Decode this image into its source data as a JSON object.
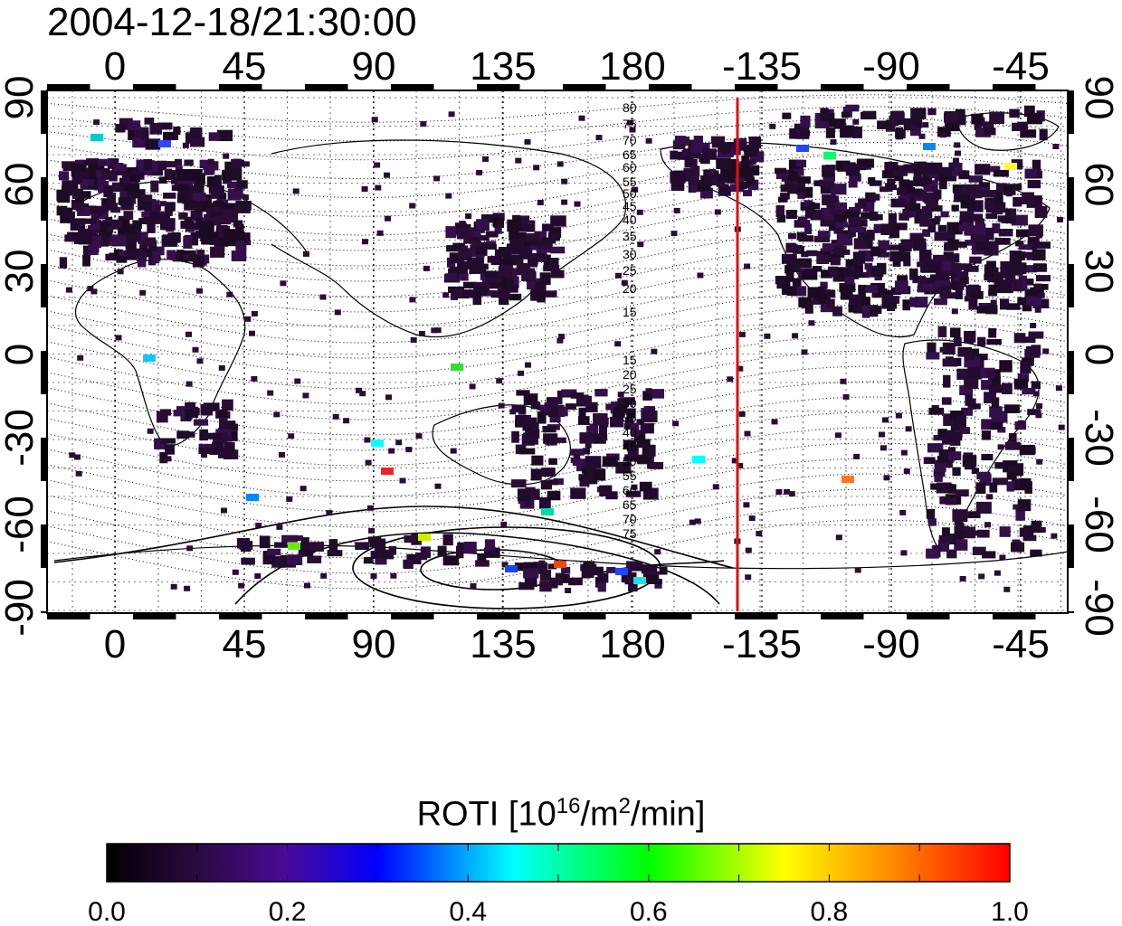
{
  "title": "2004-12-18/21:30:00",
  "map": {
    "lon_ticks": [
      "0",
      "45",
      "90",
      "135",
      "180",
      "-135",
      "-90",
      "-45"
    ],
    "lat_ticks": [
      "90",
      "60",
      "30",
      "0",
      "-30",
      "-60",
      "-90"
    ],
    "magnetic_lat_labels": [
      "80",
      "75",
      "70",
      "65",
      "60",
      "55",
      "50",
      "45",
      "40",
      "35",
      "30",
      "25",
      "20",
      "15",
      "15",
      "20",
      "25",
      "30",
      "35",
      "40",
      "45",
      "50",
      "55",
      "60",
      "65",
      "70",
      "75"
    ],
    "terminator_color": "#dd1111"
  },
  "colorbar": {
    "title_main": "ROTI  [10",
    "title_sup1": "16",
    "title_mid": "/m",
    "title_sup2": "2",
    "title_end": "/min]",
    "tick_labels": [
      "0.0",
      "0.2",
      "0.4",
      "0.6",
      "0.8",
      "1.0"
    ],
    "colors": [
      "#000000",
      "#3a0a5a",
      "#0000ff",
      "#00ffff",
      "#00ff00",
      "#ffff00",
      "#ff7f00",
      "#ff0000"
    ]
  }
}
